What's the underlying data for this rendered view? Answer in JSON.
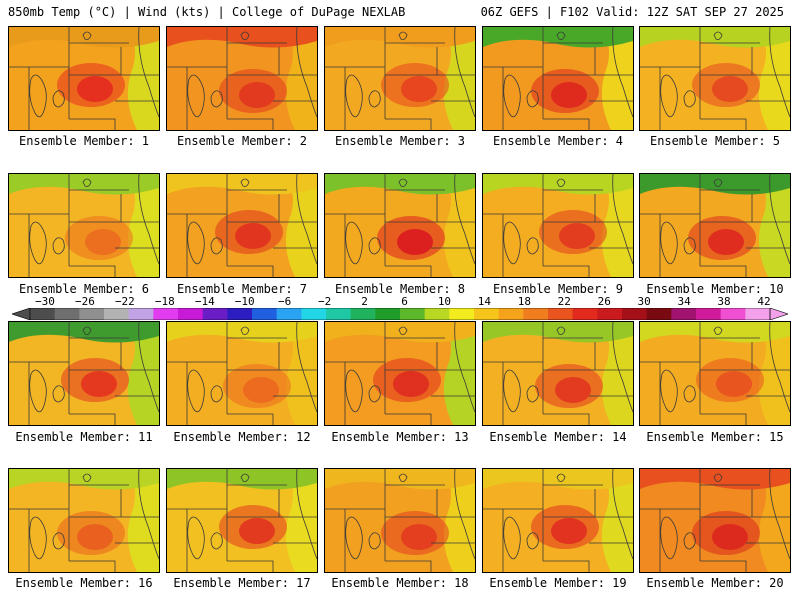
{
  "header": {
    "left_title": "850mb Temp (°C) | Wind (kts) | College of DuPage NEXLAB",
    "right_title": "06Z GEFS | F102 Valid: 12Z SAT SEP 27 2025"
  },
  "members": [
    {
      "label": "Ensemble Member: 1",
      "base": "#f2a21c",
      "core": "#e5301f",
      "north": "#e89a1b",
      "edge": "#d9d81e"
    },
    {
      "label": "Ensemble Member: 2",
      "base": "#f29520",
      "core": "#e23a1e",
      "north": "#e8501d",
      "edge": "#f0b319"
    },
    {
      "label": "Ensemble Member: 3",
      "base": "#f3a821",
      "core": "#e8461f",
      "north": "#f09c1c",
      "edge": "#d6d61e"
    },
    {
      "label": "Ensemble Member: 4",
      "base": "#f29a20",
      "core": "#df2a1e",
      "north": "#4aa829",
      "edge": "#eed21c"
    },
    {
      "label": "Ensemble Member: 5",
      "base": "#f4b222",
      "core": "#e64a20",
      "north": "#b8d221",
      "edge": "#e9d91d"
    },
    {
      "label": "Ensemble Member: 6",
      "base": "#f3b523",
      "core": "#ec6f1f",
      "north": "#9acb26",
      "edge": "#dede20"
    },
    {
      "label": "Ensemble Member: 7",
      "base": "#f2a220",
      "core": "#e2351f",
      "north": "#efc41e",
      "edge": "#e9d21c"
    },
    {
      "label": "Ensemble Member: 8",
      "base": "#f3a91f",
      "core": "#dc1f1f",
      "north": "#7cc02a",
      "edge": "#f0c41c"
    },
    {
      "label": "Ensemble Member: 9",
      "base": "#f4ad21",
      "core": "#e23d1f",
      "north": "#b7d521",
      "edge": "#e6d81e"
    },
    {
      "label": "Ensemble Member: 10",
      "base": "#f3a821",
      "core": "#df2e1f",
      "north": "#3c9a2c",
      "edge": "#c9d823"
    },
    {
      "label": "Ensemble Member: 11",
      "base": "#f2b524",
      "core": "#e4391f",
      "north": "#3f9b2d",
      "edge": "#b6d424"
    },
    {
      "label": "Ensemble Member: 12",
      "base": "#f4ae22",
      "core": "#ec6b1f",
      "north": "#e6d21d",
      "edge": "#f0c01d"
    },
    {
      "label": "Ensemble Member: 13",
      "base": "#f39c21",
      "core": "#e0301f",
      "north": "#f0b11d",
      "edge": "#b5d324"
    },
    {
      "label": "Ensemble Member: 14",
      "base": "#f4b023",
      "core": "#e33b1f",
      "north": "#96c727",
      "edge": "#dcd61e"
    },
    {
      "label": "Ensemble Member: 15",
      "base": "#f3ac21",
      "core": "#e9551f",
      "north": "#d2d71f",
      "edge": "#f0c01d"
    },
    {
      "label": "Ensemble Member: 16",
      "base": "#f3b523",
      "core": "#ea611f",
      "north": "#b9d424",
      "edge": "#dfdb1f"
    },
    {
      "label": "Ensemble Member: 17",
      "base": "#f3c021",
      "core": "#e23a1f",
      "north": "#8fc427",
      "edge": "#e9db1f"
    },
    {
      "label": "Ensemble Member: 18",
      "base": "#f2a020",
      "core": "#e4401f",
      "north": "#f0b61d",
      "edge": "#eed01c"
    },
    {
      "label": "Ensemble Member: 19",
      "base": "#f4b022",
      "core": "#e1331f",
      "north": "#ebc61e",
      "edge": "#dfd91f"
    },
    {
      "label": "Ensemble Member: 20",
      "base": "#f08a21",
      "core": "#dd2a1e",
      "north": "#e8501f",
      "edge": "#f2a71d"
    }
  ],
  "colorbar": {
    "labels": [
      "−30",
      "−26",
      "−22",
      "−18",
      "−14",
      "−10",
      "−6",
      "−2",
      "2",
      "6",
      "10",
      "14",
      "18",
      "22",
      "26",
      "30",
      "34",
      "38",
      "42"
    ],
    "colors": [
      "#4d4d4d",
      "#6f6f6f",
      "#8f8f8f",
      "#b3b3b3",
      "#c2a4e6",
      "#e13cf0",
      "#c81ad7",
      "#6a1cc7",
      "#2b1dbf",
      "#1f5fe0",
      "#2aa3f2",
      "#22d6e6",
      "#20c7a5",
      "#20b25c",
      "#1f9c2a",
      "#5cb82a",
      "#b8d823",
      "#f2ec1e",
      "#f6c51c",
      "#f6a31c",
      "#f07d1e",
      "#e9541f",
      "#e22a1f",
      "#c91a1e",
      "#a40f18",
      "#7a0a12",
      "#a0146f",
      "#d01c9b",
      "#f04fd1",
      "#f4a1ec"
    ]
  }
}
